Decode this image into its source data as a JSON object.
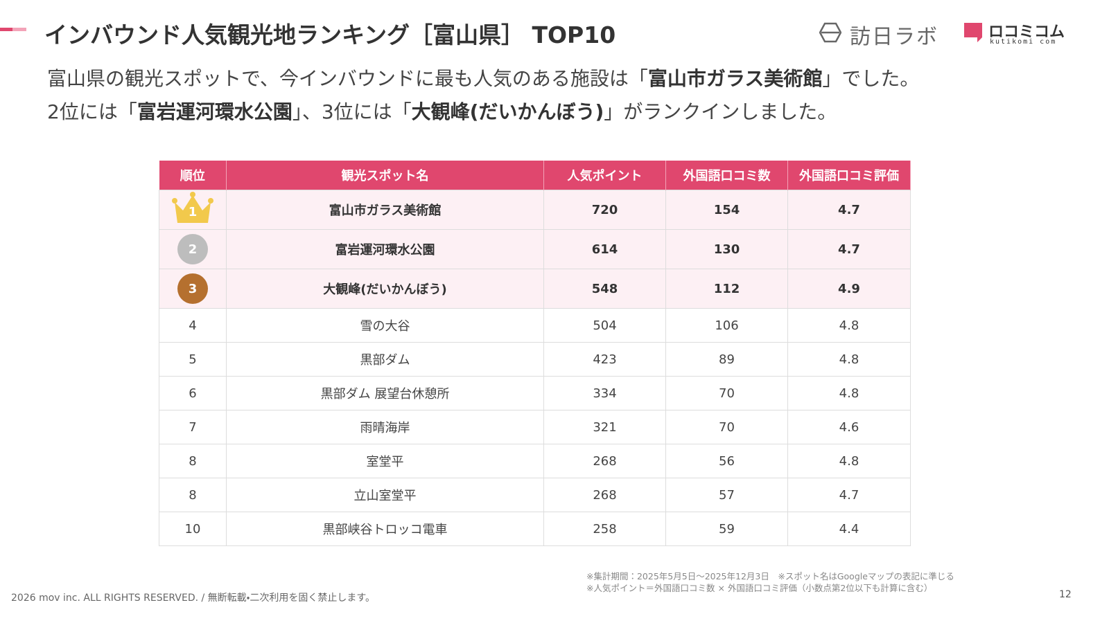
{
  "header": {
    "title": "インバウンド人気観光地ランキング［富山県］ TOP10",
    "logo_main": "訪日ラボ",
    "logo_sub": "ロコミコム",
    "logo_sub_caption": "kutikomi com"
  },
  "intro": {
    "lines": [
      [
        {
          "text": "富山県の観光スポットで、今インバウンドに最も人気のある施設は「"
        },
        {
          "text": "富山市ガラス美術館",
          "bold": true
        },
        {
          "text": "」でした。"
        }
      ],
      [
        {
          "text": "2位には「"
        },
        {
          "text": "富岩運河環水公園",
          "bold": true
        },
        {
          "text": "」、3位には「"
        },
        {
          "text": "大観峰(だいかんぼう)",
          "bold": true
        },
        {
          "text": "」がランクインしました。"
        }
      ]
    ]
  },
  "table": {
    "columns": [
      "順位",
      "観光スポット名",
      "人気ポイント",
      "外国語口コミ数",
      "外国語口コミ評価"
    ],
    "rows": [
      [
        1,
        "富山市ガラス美術館",
        720,
        154,
        4.7
      ],
      [
        2,
        "富岩運河環水公園",
        614,
        130,
        4.7
      ],
      [
        3,
        "大観峰(だいかんぼう)",
        548,
        112,
        4.9
      ],
      [
        4,
        "雪の大谷",
        504,
        106,
        4.8
      ],
      [
        5,
        "黒部ダム",
        423,
        89,
        4.8
      ],
      [
        6,
        "黒部ダム 展望台休憩所",
        334,
        70,
        4.8
      ],
      [
        7,
        "雨晴海岸",
        321,
        70,
        4.6
      ],
      [
        8,
        "室堂平",
        268,
        56,
        4.8
      ],
      [
        8,
        "立山室堂平",
        268,
        57,
        4.7
      ],
      [
        10,
        "黒部峡谷トロッコ電車",
        258,
        59,
        4.4
      ]
    ]
  },
  "footer": {
    "notes": [
      "※集計期間：2025年5月5日〜2025年12月3日　※スポット名はGoogleマップの表記に準じる",
      "※人気ポイント＝外国語口コミ数 × 外国語口コミ評価（小数点第2位以下も計算に含む）"
    ],
    "copyright": "2026 mov inc. ALL RIGHTS RESERVED. / 無断転載・二次利用を固く禁止します。",
    "page_number": "12"
  }
}
